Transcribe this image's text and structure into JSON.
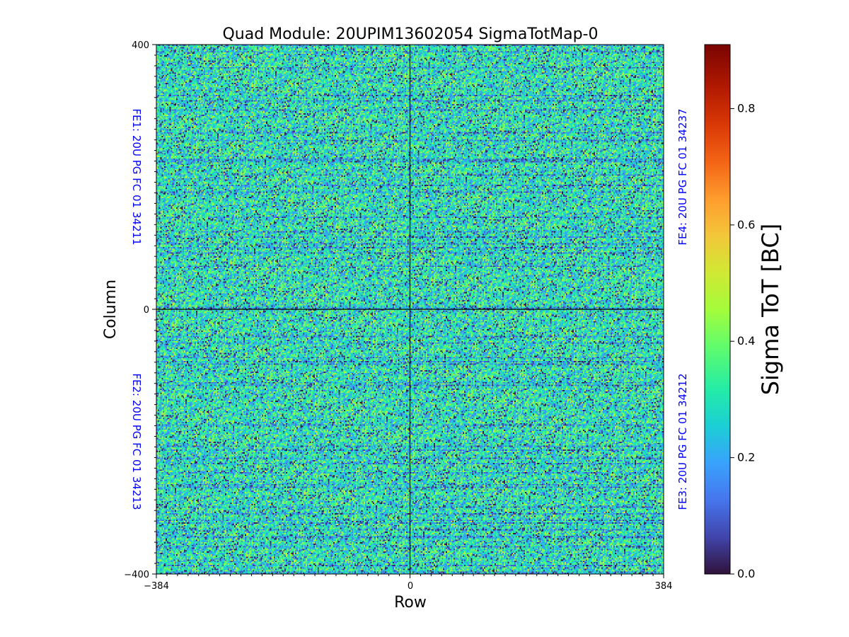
{
  "chart_data": {
    "type": "heatmap",
    "title": "Quad Module: 20UPIM13602054 SigmaTotMap-0",
    "xlabel": "Row",
    "ylabel": "Column",
    "xlim": [
      -384,
      384
    ],
    "ylim": [
      -400,
      400
    ],
    "x_ticks": [
      "−384",
      "0",
      "384"
    ],
    "y_ticks": [
      "400",
      "0",
      "−400"
    ],
    "colorbar": {
      "label": "Sigma ToT [BC]",
      "range": [
        0.0,
        0.91
      ],
      "ticks": [
        "0.0",
        "0.2",
        "0.4",
        "0.6",
        "0.8"
      ],
      "tick_values": [
        0.0,
        0.2,
        0.4,
        0.6,
        0.8
      ],
      "colormap": "turbo"
    },
    "quadrant_labels": [
      {
        "text": "FE1: 20U PG FC 01 34211",
        "position": "left-top"
      },
      {
        "text": "FE2: 20U PG FC 01 34213",
        "position": "left-bottom"
      },
      {
        "text": "FE4: 20U PG FC 01 34237",
        "position": "right-top"
      },
      {
        "text": "FE3: 20U PG FC 01 34212",
        "position": "right-bottom"
      }
    ],
    "value_distribution": {
      "typical_min": 0.0,
      "typical_max": 0.6,
      "mean": 0.33
    },
    "label_color": "#0000ff"
  }
}
